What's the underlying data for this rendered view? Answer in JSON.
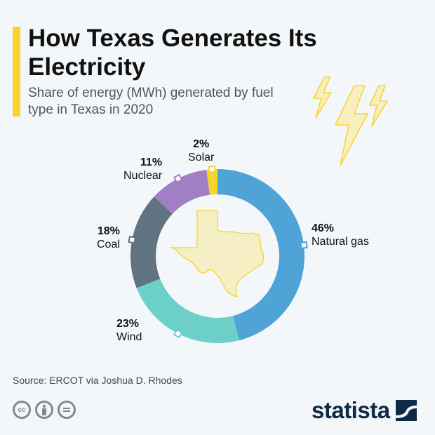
{
  "header": {
    "title": "How Texas Generates Its Electricity",
    "subtitle": "Share of energy (MWh) generated by fuel type in Texas in 2020",
    "accent": "#f7d52a"
  },
  "chart_data": {
    "type": "pie",
    "variant": "donut",
    "title": "How Texas Generates Its Electricity",
    "subtitle": "Share of energy (MWh) generated by fuel type in Texas in 2020",
    "unit": "%",
    "categories": [
      "Natural gas",
      "Wind",
      "Coal",
      "Nuclear",
      "Solar"
    ],
    "values": [
      46,
      23,
      18,
      11,
      2
    ],
    "labels": [
      "46%",
      "23%",
      "18%",
      "11%",
      "2%"
    ],
    "colors": [
      "#4fa3d6",
      "#6ccfc8",
      "#5f7380",
      "#a17fc4",
      "#f7d52a"
    ]
  },
  "footer": {
    "source": "Source: ERCOT via Joshua D. Rhodes",
    "license_icons": [
      "cc-icon",
      "by-icon",
      "nd-icon"
    ],
    "cc_text": "cc",
    "logo": "statista"
  }
}
